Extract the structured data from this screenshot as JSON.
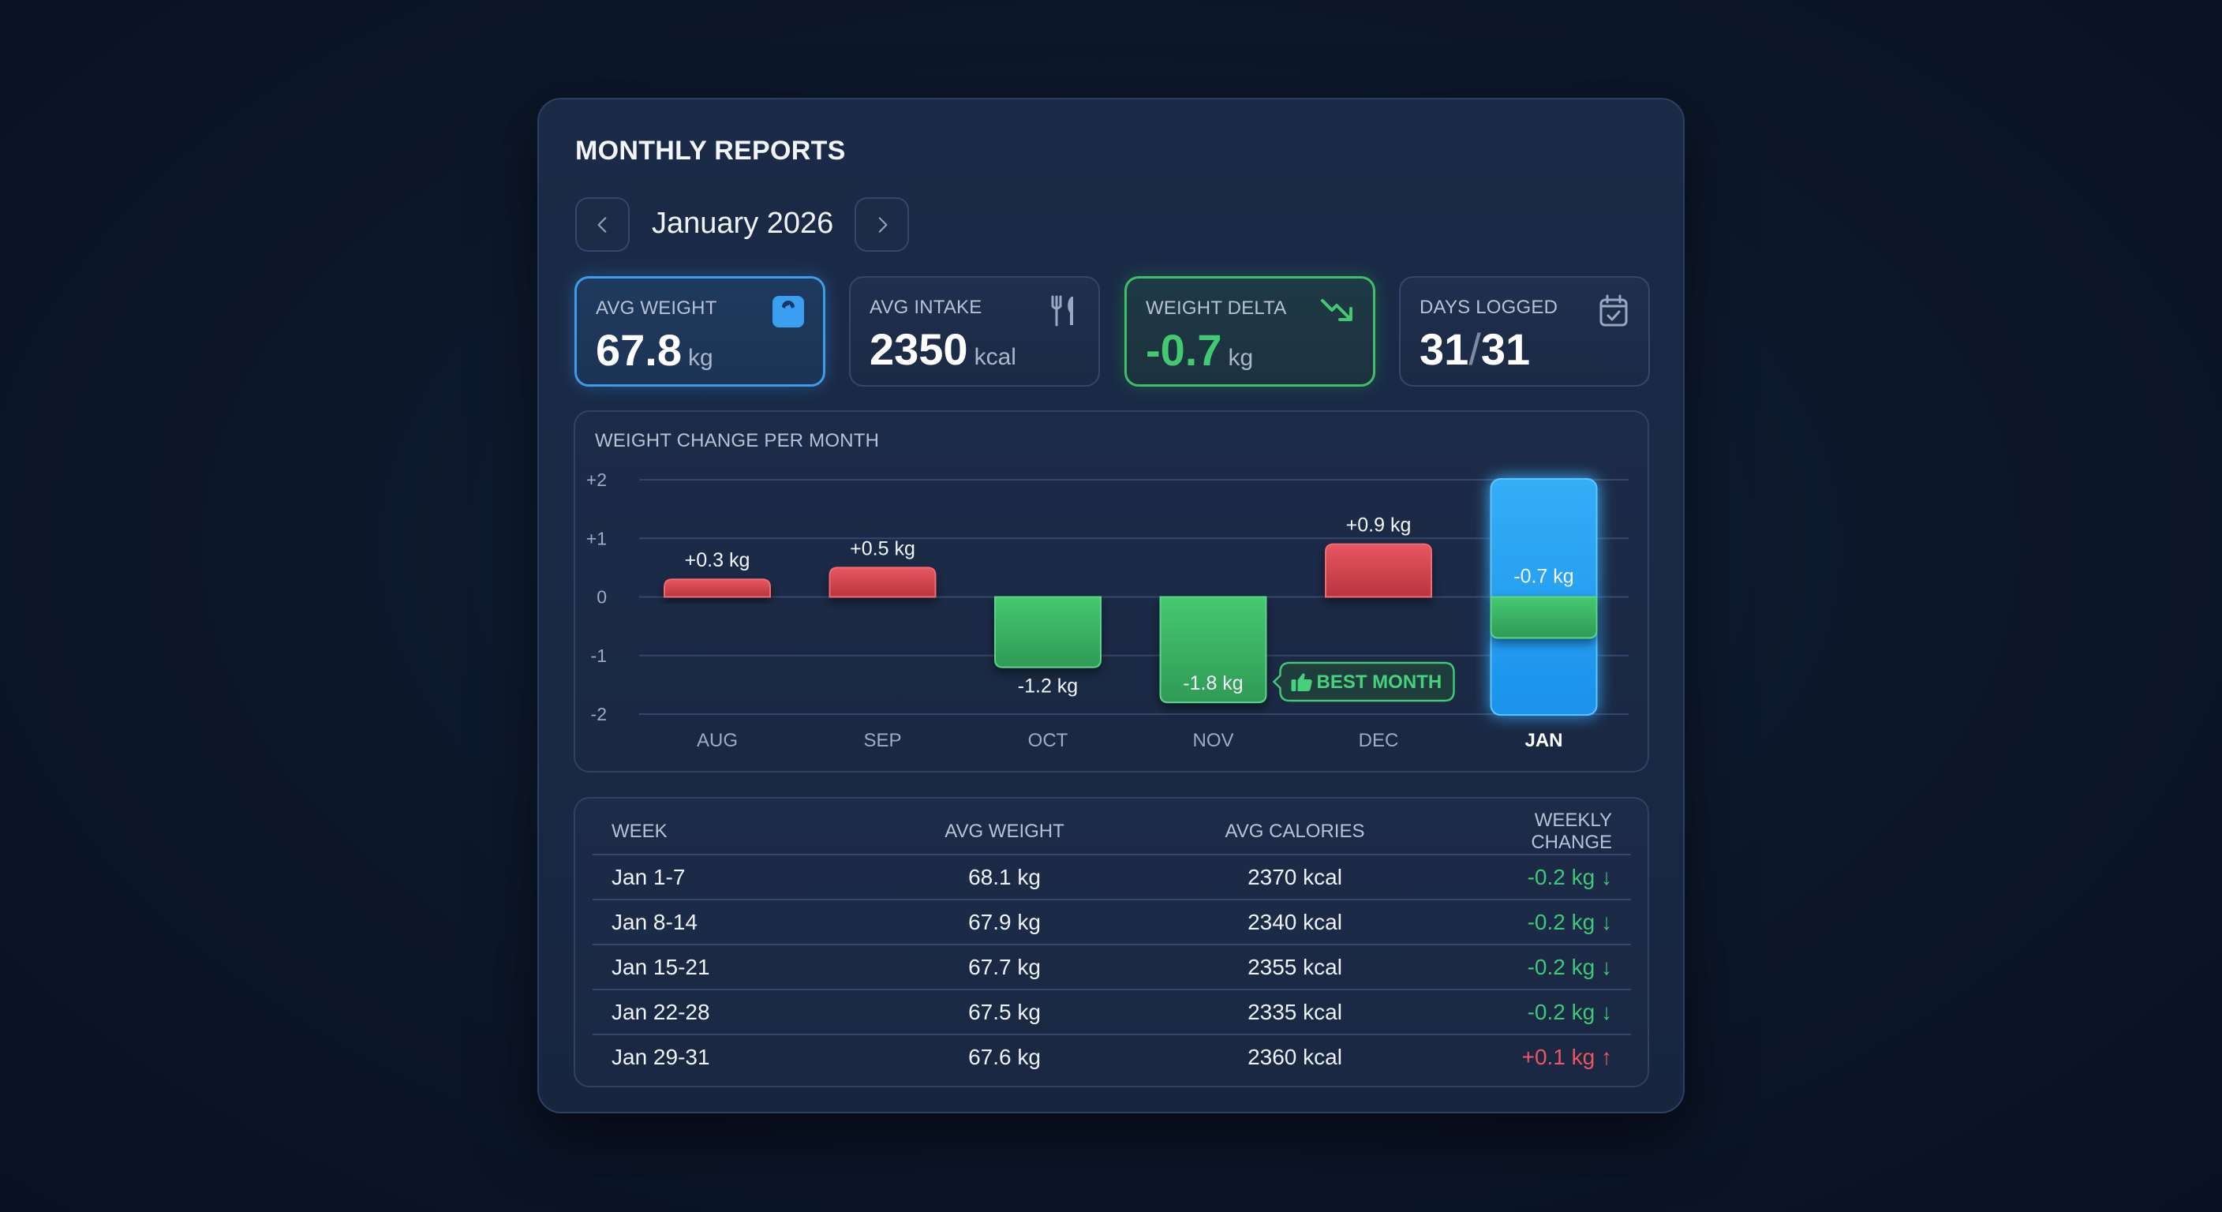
{
  "header": {
    "title": "MONTHLY REPORTS",
    "period": "January 2026",
    "prev_icon": "chevron-left-icon",
    "next_icon": "chevron-right-icon"
  },
  "stats": [
    {
      "label": "AVG WEIGHT",
      "value": "67.8",
      "unit": "kg",
      "icon": "scale-icon",
      "accent": "#3d9de8"
    },
    {
      "label": "AVG INTAKE",
      "value": "2350",
      "unit": "kcal",
      "icon": "fork-knife-icon",
      "accent": "#34476a"
    },
    {
      "label": "WEIGHT DELTA",
      "value": "-0.7",
      "unit": "kg",
      "icon": "trend-down-icon",
      "accent": "#3fbf6a"
    },
    {
      "label": "DAYS LOGGED",
      "value": "31",
      "sep": "/",
      "total": "31",
      "icon": "calendar-check-icon",
      "accent": "#34476a"
    }
  ],
  "chart_data": {
    "type": "bar",
    "title": "WEIGHT CHANGE PER MONTH",
    "categories": [
      "AUG",
      "SEP",
      "OCT",
      "NOV",
      "DEC",
      "JAN"
    ],
    "values": [
      0.3,
      0.5,
      -1.2,
      -1.8,
      0.9,
      -0.7
    ],
    "data_labels": [
      "+0.3 kg",
      "+0.5 kg",
      "-1.2 kg",
      "-1.8 kg",
      "+0.9 kg",
      "-0.7 kg"
    ],
    "ylim": [
      -2,
      2
    ],
    "yticks": [
      2,
      1,
      0,
      -1,
      -2
    ],
    "ytick_labels": [
      "+2",
      "+1",
      "0",
      "-1",
      "-2"
    ],
    "xlabel": "",
    "ylabel": "",
    "grid": true,
    "highlight_category": "JAN",
    "annotation": {
      "text": "BEST MONTH",
      "category": "NOV",
      "icon": "thumbs-up-icon"
    },
    "colors": {
      "gain": "#e2474f",
      "loss": "#3fbe66",
      "highlight": "#1f9cf0"
    }
  },
  "table": {
    "headers": [
      "WEEK",
      "AVG WEIGHT",
      "AVG CALORIES",
      "WEEKLY CHANGE"
    ],
    "rows": [
      {
        "week": "Jan 1-7",
        "weight": "68.1 kg",
        "calories": "2370 kcal",
        "change": "-0.2 kg ↓",
        "trend": "down"
      },
      {
        "week": "Jan 8-14",
        "weight": "67.9 kg",
        "calories": "2340 kcal",
        "change": "-0.2 kg ↓",
        "trend": "down"
      },
      {
        "week": "Jan 15-21",
        "weight": "67.7 kg",
        "calories": "2355 kcal",
        "change": "-0.2 kg ↓",
        "trend": "down"
      },
      {
        "week": "Jan 22-28",
        "weight": "67.5 kg",
        "calories": "2335 kcal",
        "change": "-0.2 kg ↓",
        "trend": "down"
      },
      {
        "week": "Jan 29-31",
        "weight": "67.6 kg",
        "calories": "2360 kcal",
        "change": "+0.1 kg ↑",
        "trend": "up"
      }
    ]
  }
}
